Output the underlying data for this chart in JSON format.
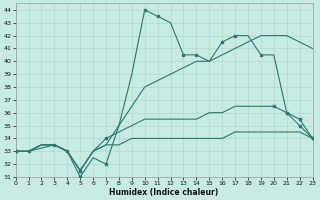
{
  "xlabel": "Humidex (Indice chaleur)",
  "xlim": [
    0,
    23
  ],
  "ylim": [
    31,
    44.5
  ],
  "yticks": [
    31,
    32,
    33,
    34,
    35,
    36,
    37,
    38,
    39,
    40,
    41,
    42,
    43,
    44
  ],
  "xticks": [
    0,
    1,
    2,
    3,
    4,
    5,
    6,
    7,
    8,
    9,
    10,
    11,
    12,
    13,
    14,
    15,
    16,
    17,
    18,
    19,
    20,
    21,
    22,
    23
  ],
  "bg_color": "#c8eae4",
  "line_color": "#2a7a6a",
  "grid_color": "#a8d4cc",
  "s1_x": [
    0,
    1,
    3,
    4,
    5,
    6,
    7,
    8,
    9,
    10,
    11,
    12,
    13,
    14,
    15,
    16,
    17,
    18,
    19,
    20,
    21,
    22,
    23
  ],
  "s1_y": [
    33,
    33,
    33.5,
    33,
    31,
    32.5,
    32,
    35,
    39,
    44,
    43.5,
    43,
    40.5,
    40.5,
    40,
    41.5,
    42,
    42,
    40.5,
    40.5,
    36,
    35,
    34
  ],
  "s1_mx": [
    0,
    1,
    3,
    4,
    5,
    7,
    10,
    11,
    13,
    14,
    16,
    17,
    19,
    21,
    22,
    23
  ],
  "s1_my": [
    33,
    33,
    33.5,
    33,
    31,
    32,
    44,
    43.5,
    40.5,
    40.5,
    41.5,
    42,
    40.5,
    36,
    35,
    34
  ],
  "s2_x": [
    0,
    1,
    2,
    3,
    4,
    5,
    6,
    7,
    8,
    9,
    10,
    11,
    12,
    13,
    14,
    15,
    16,
    17,
    18,
    19,
    20,
    21,
    22,
    23
  ],
  "s2_y": [
    33,
    33,
    33.5,
    33.5,
    33,
    31.5,
    33,
    33.5,
    35,
    36.5,
    38,
    38.5,
    39,
    39.5,
    40,
    40,
    40.5,
    41,
    41.5,
    42,
    42,
    42,
    41.5,
    41
  ],
  "s3_x": [
    0,
    1,
    2,
    3,
    4,
    5,
    6,
    7,
    8,
    9,
    10,
    11,
    12,
    13,
    14,
    15,
    16,
    17,
    18,
    19,
    20,
    21,
    22,
    23
  ],
  "s3_y": [
    33,
    33,
    33.5,
    33.5,
    33,
    31.5,
    33,
    34,
    34.5,
    35,
    35.5,
    35.5,
    35.5,
    35.5,
    35.5,
    36,
    36,
    36.5,
    36.5,
    36.5,
    36.5,
    36,
    35.5,
    34
  ],
  "s3_mx": [
    0,
    5,
    7,
    20,
    21,
    22,
    23
  ],
  "s3_my": [
    33,
    31.5,
    34,
    36.5,
    36,
    35.5,
    34
  ],
  "s4_x": [
    0,
    1,
    2,
    3,
    4,
    5,
    6,
    7,
    8,
    9,
    10,
    11,
    12,
    13,
    14,
    15,
    16,
    17,
    18,
    19,
    20,
    21,
    22,
    23
  ],
  "s4_y": [
    33,
    33,
    33.5,
    33.5,
    33,
    31.5,
    33,
    33.5,
    33.5,
    34,
    34,
    34,
    34,
    34,
    34,
    34,
    34,
    34.5,
    34.5,
    34.5,
    34.5,
    34.5,
    34.5,
    34
  ],
  "s4_mx": [
    0,
    5,
    23
  ],
  "s4_my": [
    33,
    31.5,
    34
  ]
}
